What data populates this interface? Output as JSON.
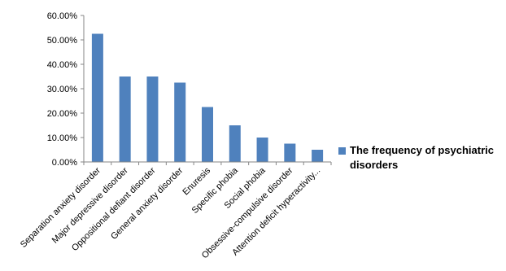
{
  "chart_data": {
    "type": "bar",
    "categories": [
      "Separation anxiety disorder",
      "Major depressive disorder",
      "Oppositional defiant disorder",
      "General anxiety disorder",
      "Enuresis",
      "Specific phobia",
      "Social phobia",
      "Obsessive-compulsive disorder",
      "Attention deficit hyperactivity..."
    ],
    "series": [
      {
        "name": "The frequency of psychiatric disorders",
        "values": [
          52.5,
          35.0,
          35.0,
          32.5,
          22.5,
          15.0,
          10.0,
          7.5,
          5.0
        ],
        "color": "#4F81BD"
      }
    ],
    "ylim": [
      0,
      60
    ],
    "yticks": [
      "0.00%",
      "10.00%",
      "20.00%",
      "30.00%",
      "40.00%",
      "50.00%",
      "60.00%"
    ],
    "grid": false,
    "legend_position": "right",
    "title": "",
    "xlabel": "",
    "ylabel": ""
  }
}
